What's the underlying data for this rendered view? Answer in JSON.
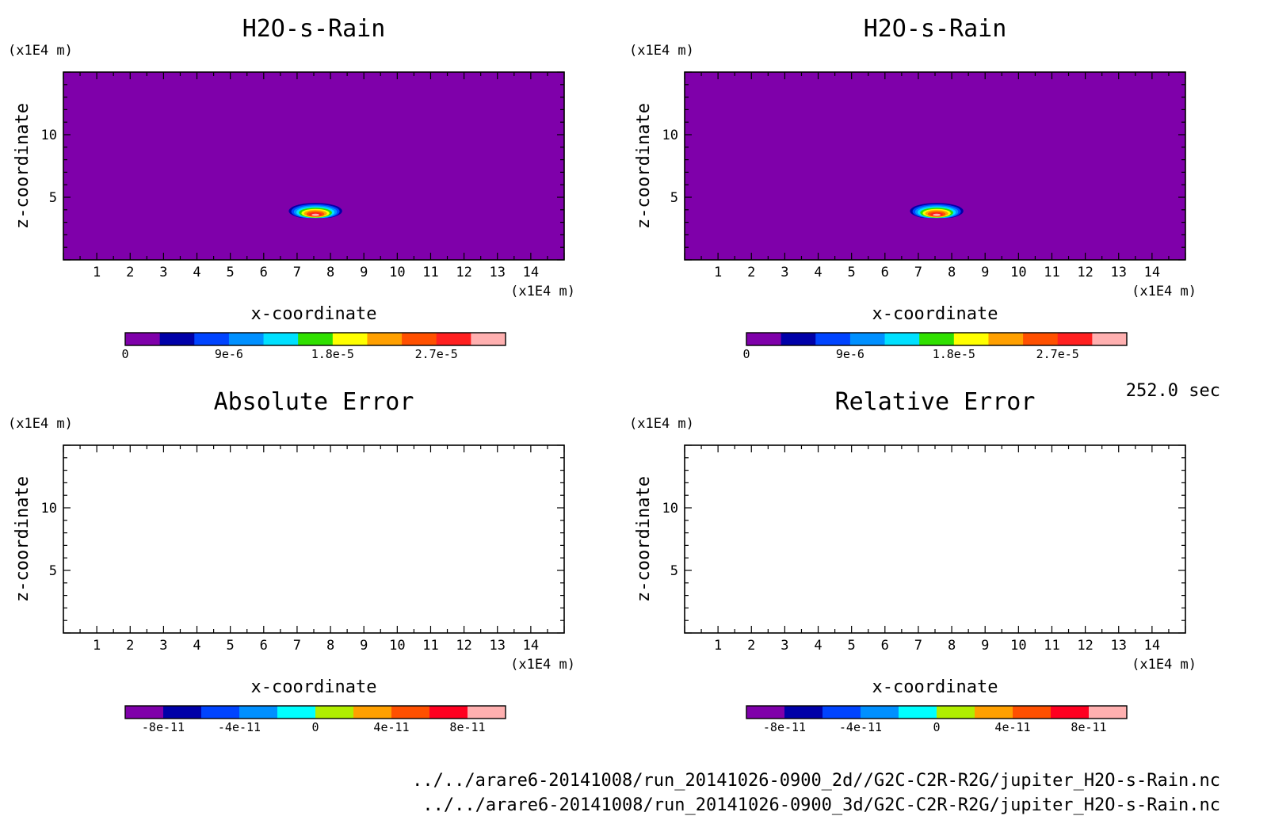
{
  "time_label": "252.0 sec",
  "file_paths": [
    "../../arare6-20141008/run_20141026-0900_2d//G2C-C2R-R2G/jupiter_H2O-s-Rain.nc",
    "../../arare6-20141008/run_20141026-0900_3d/G2C-C2R-R2G/jupiter_H2O-s-Rain.nc"
  ],
  "chart_data": [
    {
      "type": "heatmap",
      "title": "H2O-s-Rain",
      "xlabel": "x-coordinate",
      "ylabel": "z-coordinate",
      "x_unit": "(x1E4 m)",
      "y_unit": "(x1E4 m)",
      "xlim": [
        0,
        15
      ],
      "ylim": [
        0,
        15
      ],
      "x_ticks": [
        1,
        2,
        3,
        4,
        5,
        6,
        7,
        8,
        9,
        10,
        11,
        12,
        13,
        14
      ],
      "y_ticks": [
        5,
        10
      ],
      "background_color": "#7f00aa",
      "blob": {
        "x_center": 7.55,
        "z_center": 3.9,
        "x_halfwidth": 0.8,
        "z_halfheight": 0.65,
        "peak_value": 3.3e-05
      },
      "colorbar": {
        "levels": 11,
        "colors": [
          "#7f00aa",
          "#0000a8",
          "#0044ff",
          "#0090ff",
          "#00e0ff",
          "#30e000",
          "#ffff00",
          "#ffa000",
          "#ff5000",
          "#ff2020",
          "#ffb0b0"
        ],
        "tick_labels": [
          "0",
          "9e-6",
          "1.8e-5",
          "2.7e-5"
        ],
        "tick_values": [
          0,
          9e-06,
          1.8e-05,
          2.7e-05
        ],
        "vmin": 0,
        "vmax": 3.3e-05
      }
    },
    {
      "type": "heatmap",
      "title": "H2O-s-Rain",
      "xlabel": "x-coordinate",
      "ylabel": "z-coordinate",
      "x_unit": "(x1E4 m)",
      "y_unit": "(x1E4 m)",
      "xlim": [
        0,
        15
      ],
      "ylim": [
        0,
        15
      ],
      "x_ticks": [
        1,
        2,
        3,
        4,
        5,
        6,
        7,
        8,
        9,
        10,
        11,
        12,
        13,
        14
      ],
      "y_ticks": [
        5,
        10
      ],
      "background_color": "#7f00aa",
      "blob": {
        "x_center": 7.55,
        "z_center": 3.9,
        "x_halfwidth": 0.8,
        "z_halfheight": 0.65,
        "peak_value": 3.3e-05
      },
      "colorbar": {
        "levels": 11,
        "colors": [
          "#7f00aa",
          "#0000a8",
          "#0044ff",
          "#0090ff",
          "#00e0ff",
          "#30e000",
          "#ffff00",
          "#ffa000",
          "#ff5000",
          "#ff2020",
          "#ffb0b0"
        ],
        "tick_labels": [
          "0",
          "9e-6",
          "1.8e-5",
          "2.7e-5"
        ],
        "tick_values": [
          0,
          9e-06,
          1.8e-05,
          2.7e-05
        ],
        "vmin": 0,
        "vmax": 3.3e-05
      }
    },
    {
      "type": "heatmap",
      "title": "Absolute Error",
      "xlabel": "x-coordinate",
      "ylabel": "z-coordinate",
      "x_unit": "(x1E4 m)",
      "y_unit": "(x1E4 m)",
      "xlim": [
        0,
        15
      ],
      "ylim": [
        0,
        15
      ],
      "x_ticks": [
        1,
        2,
        3,
        4,
        5,
        6,
        7,
        8,
        9,
        10,
        11,
        12,
        13,
        14
      ],
      "y_ticks": [
        5,
        10
      ],
      "background_color": "#ffffff",
      "blob": null,
      "colorbar": {
        "levels": 9,
        "colors": [
          "#7f00aa",
          "#0000a8",
          "#0044ff",
          "#0090ff",
          "#00ffff",
          "#b0ee00",
          "#ffa000",
          "#ff5000",
          "#ff0020",
          "#ffb0b0"
        ],
        "tick_labels": [
          "-8e-11",
          "-4e-11",
          "0",
          "4e-11",
          "8e-11"
        ],
        "tick_values": [
          -8e-11,
          -4e-11,
          0,
          4e-11,
          8e-11
        ],
        "vmin": -1e-10,
        "vmax": 1e-10
      }
    },
    {
      "type": "heatmap",
      "title": "Relative Error",
      "xlabel": "x-coordinate",
      "ylabel": "z-coordinate",
      "x_unit": "(x1E4 m)",
      "y_unit": "(x1E4 m)",
      "xlim": [
        0,
        15
      ],
      "ylim": [
        0,
        15
      ],
      "x_ticks": [
        1,
        2,
        3,
        4,
        5,
        6,
        7,
        8,
        9,
        10,
        11,
        12,
        13,
        14
      ],
      "y_ticks": [
        5,
        10
      ],
      "background_color": "#ffffff",
      "blob": null,
      "colorbar": {
        "levels": 9,
        "colors": [
          "#7f00aa",
          "#0000a8",
          "#0044ff",
          "#0090ff",
          "#00ffff",
          "#b0ee00",
          "#ffa000",
          "#ff5000",
          "#ff0020",
          "#ffb0b0"
        ],
        "tick_labels": [
          "-8e-11",
          "-4e-11",
          "0",
          "4e-11",
          "8e-11"
        ],
        "tick_values": [
          -8e-11,
          -4e-11,
          0,
          4e-11,
          8e-11
        ],
        "vmin": -1e-10,
        "vmax": 1e-10
      }
    }
  ]
}
